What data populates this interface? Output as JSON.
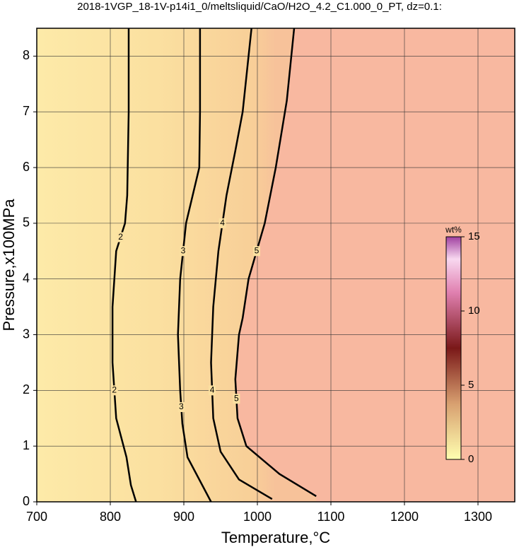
{
  "chart_data": {
    "type": "contour",
    "title": "2018-1VGP_18-1V-p14i1_0/meltsliquid/CaO/H2O_4.2_C1.000_0_PT, dz=0.1:",
    "x_label": "Temperature,°C",
    "y_label": "Pressure,x100MPa",
    "xlim": [
      700,
      1350
    ],
    "xticks": [
      700,
      800,
      900,
      1000,
      1100,
      1200,
      1300
    ],
    "ylim": [
      0,
      8.5
    ],
    "yticks": [
      0,
      1,
      2,
      3,
      4,
      5,
      6,
      7,
      8
    ],
    "grid": true,
    "series": [
      {
        "name": "2",
        "color": "#000000",
        "x": [
          835,
          828,
          822,
          808,
          803,
          803,
          808,
          820,
          823,
          825,
          825
        ],
        "y": [
          0,
          0.3,
          0.8,
          1.5,
          2.5,
          3.5,
          4.5,
          5,
          5.5,
          7,
          8.5
        ]
      },
      {
        "name": "3",
        "color": "#000000",
        "x": [
          937,
          905,
          898,
          895,
          892,
          895,
          903,
          921,
          922,
          922
        ],
        "y": [
          0,
          0.8,
          1.4,
          2,
          3,
          4,
          5,
          6,
          7,
          8.5
        ]
      },
      {
        "name": "4",
        "color": "#000000",
        "x": [
          1020,
          975,
          950,
          940,
          937,
          940,
          947,
          958,
          970,
          980,
          992
        ],
        "y": [
          0.05,
          0.4,
          0.9,
          1.5,
          2.5,
          3.5,
          4.5,
          5.5,
          6.3,
          7,
          8.5
        ]
      },
      {
        "name": "5",
        "color": "#000000",
        "x": [
          1080,
          1030,
          985,
          973,
          970,
          975,
          980,
          988,
          1010,
          1025,
          1040,
          1050
        ],
        "y": [
          0.1,
          0.5,
          1,
          1.5,
          2.2,
          3,
          3.3,
          4,
          5,
          6,
          7.2,
          8.5
        ]
      }
    ],
    "colorbar": {
      "label": "wt%",
      "lim": [
        0,
        15
      ],
      "ticks": [
        0,
        5,
        10,
        15
      ]
    }
  }
}
